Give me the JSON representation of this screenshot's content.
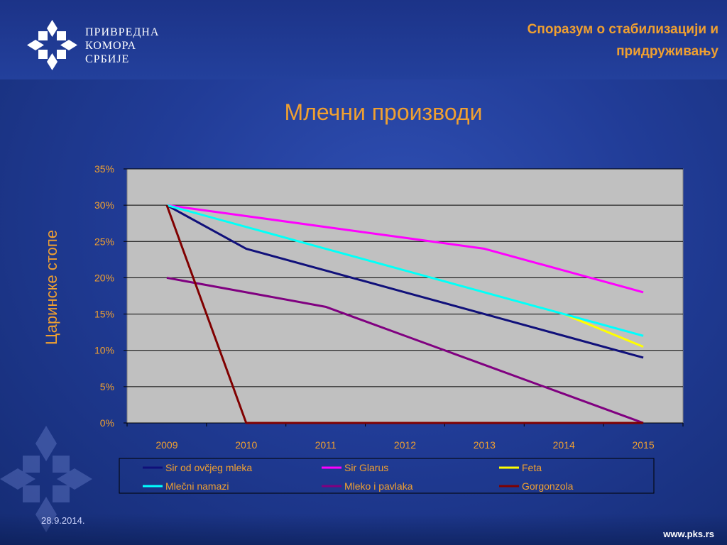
{
  "header": {
    "logo_lines": [
      "ПРИВРЕДНА",
      "КОМОРА",
      "СРБИЈЕ"
    ],
    "subject_line1": "Споразум о стабилизацији и",
    "subject_line2": "придруживању"
  },
  "slide_title": "Млечни производи",
  "footer": {
    "date": "28.9.2014.",
    "website": "www.pks.rs"
  },
  "colors": {
    "accent": "#f0a030",
    "plot_bg": "#c0c0c0",
    "tick_text": "#f0a030"
  },
  "chart_data": {
    "type": "line",
    "title": "",
    "xlabel": "",
    "ylabel": "Царинске стопе",
    "x": [
      "2009",
      "2010",
      "2011",
      "2012",
      "2013",
      "2014",
      "2015"
    ],
    "ylim": [
      0,
      35
    ],
    "yticks": [
      "0%",
      "5%",
      "10%",
      "15%",
      "20%",
      "25%",
      "30%",
      "35%"
    ],
    "grid": true,
    "legend_position": "bottom",
    "series": [
      {
        "name": "Sir od ovčjeg mleka",
        "color": "#10107a",
        "values": [
          30,
          24,
          21,
          18,
          15,
          12,
          9
        ]
      },
      {
        "name": "Sir Glarus",
        "color": "#ff00ff",
        "values": [
          30,
          28.5,
          27,
          25.5,
          24,
          21,
          18
        ]
      },
      {
        "name": "Feta",
        "color": "#ffff00",
        "values": [
          30,
          27,
          24,
          21,
          18,
          15,
          10.5
        ]
      },
      {
        "name": "Mlečni namazi",
        "color": "#00ffff",
        "values": [
          30,
          27,
          24,
          21,
          18,
          15,
          12
        ]
      },
      {
        "name": "Mleko i pavlaka",
        "color": "#800080",
        "values": [
          20,
          18,
          16,
          12,
          8,
          4,
          0
        ]
      },
      {
        "name": "Gorgonzola",
        "color": "#800000",
        "values": [
          30,
          0,
          0,
          0,
          0,
          0,
          0
        ]
      }
    ]
  }
}
